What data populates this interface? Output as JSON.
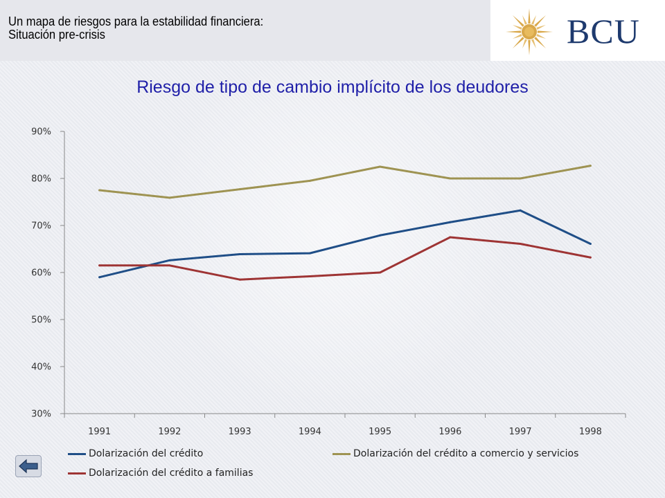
{
  "header": {
    "title": "Un mapa de riesgos para la estabilidad financiera: Situación pre-crisis",
    "logo_text": "BCU"
  },
  "icons": {
    "logo": "sun-emblem-icon",
    "back": "back-arrow-icon"
  },
  "colors": {
    "blue_series": "#1f4e87",
    "olive_series": "#9e9352",
    "red_series": "#9e3434",
    "title": "#1f1fa8"
  },
  "chart_data": {
    "type": "line",
    "title": "Riesgo de tipo de cambio implícito de los deudores",
    "categories": [
      "1991",
      "1992",
      "1993",
      "1994",
      "1995",
      "1996",
      "1997",
      "1998"
    ],
    "ylim": [
      0.3,
      0.9
    ],
    "yticks": [
      "30%",
      "40%",
      "50%",
      "60%",
      "70%",
      "80%",
      "90%"
    ],
    "legend_position": "bottom",
    "series": [
      {
        "name": "Dolarización del crédito",
        "values": [
          0.59,
          0.626,
          0.639,
          0.641,
          0.679,
          0.707,
          0.732,
          0.661
        ]
      },
      {
        "name": "Dolarización del crédito a comercio y servicios",
        "values": [
          0.775,
          0.759,
          0.777,
          0.795,
          0.825,
          0.8,
          0.8,
          0.827
        ]
      },
      {
        "name": "Dolarización del crédito a familias",
        "values": [
          0.615,
          0.615,
          0.585,
          0.592,
          0.6,
          0.675,
          0.661,
          0.632
        ]
      }
    ]
  }
}
